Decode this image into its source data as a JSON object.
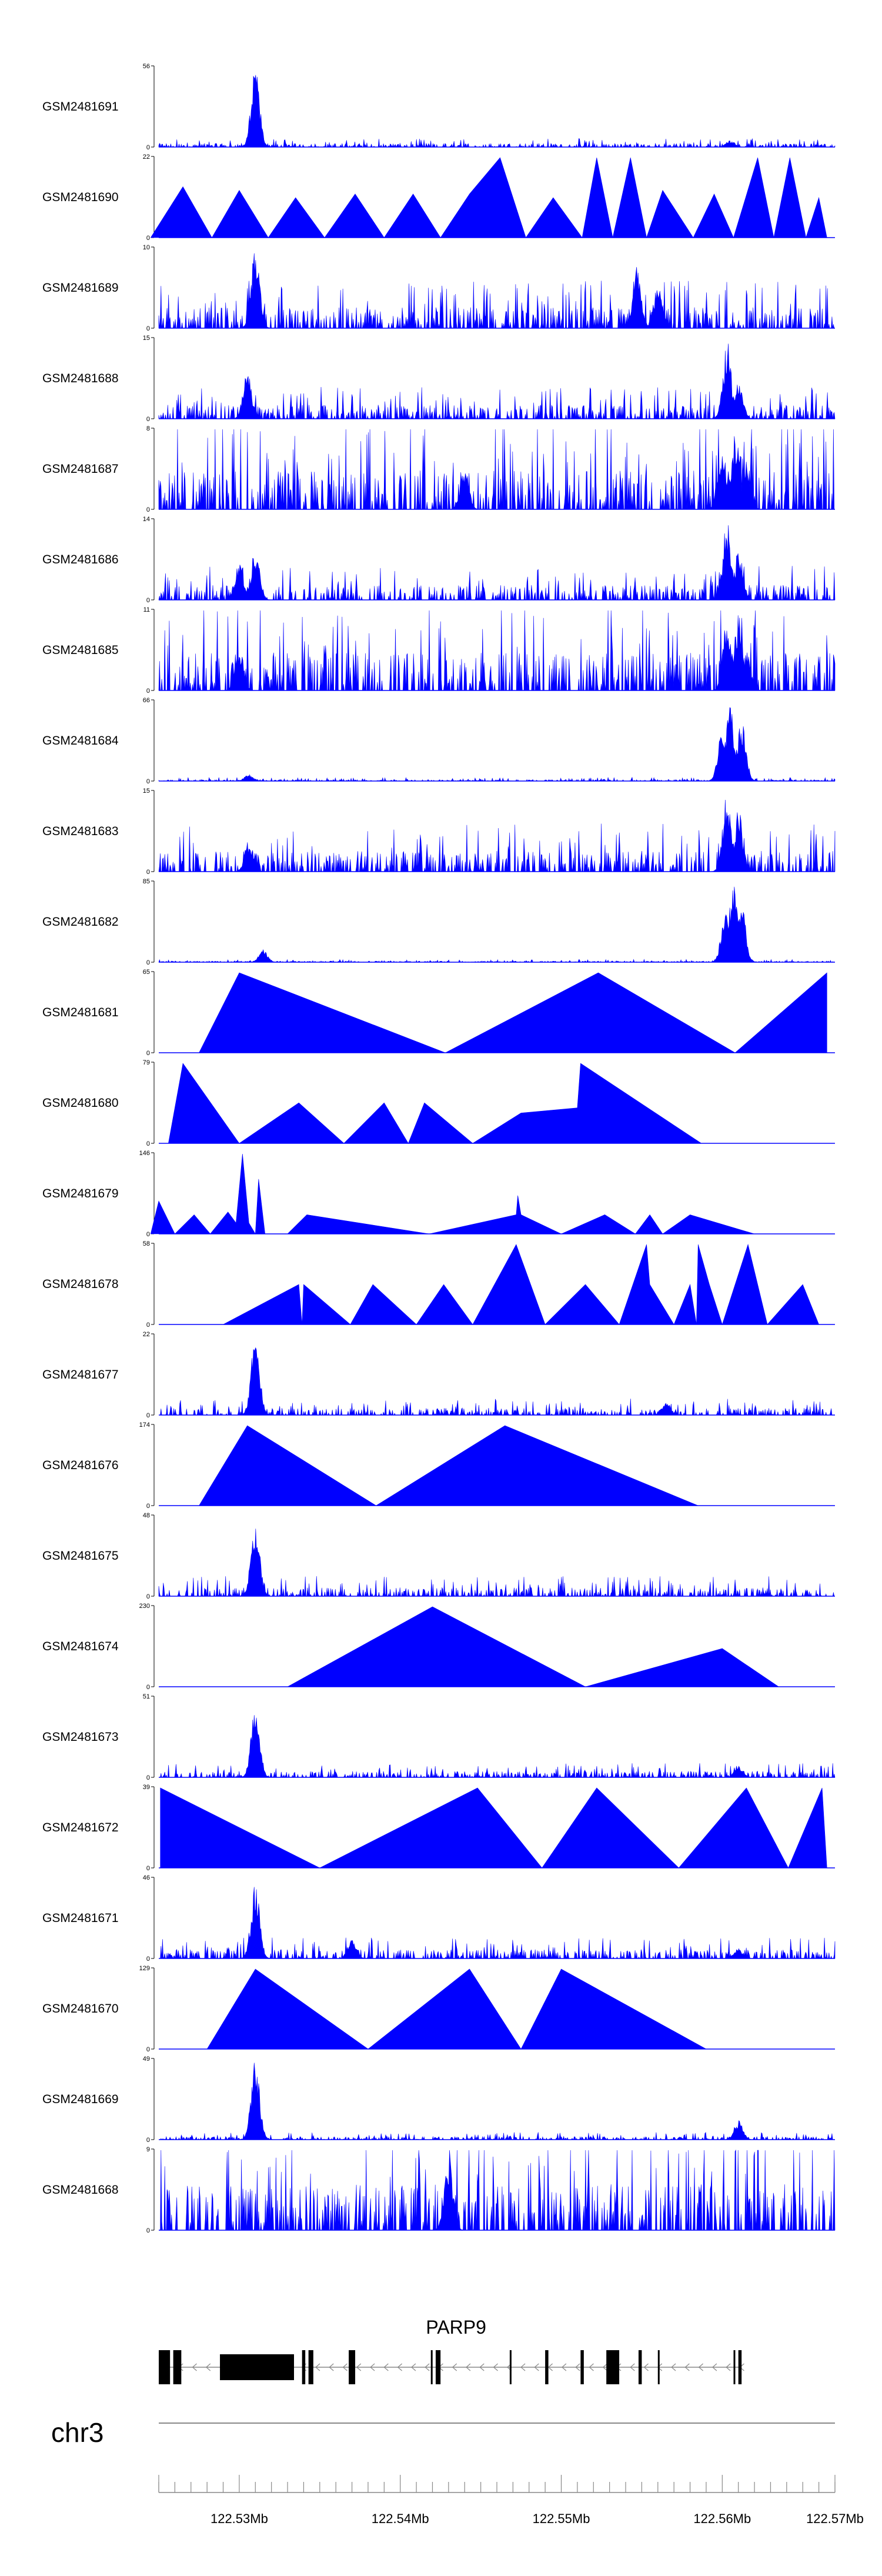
{
  "chart_data": {
    "type": "area",
    "title": "",
    "chromosome": "chr3",
    "x_range": [
      122.525,
      122.567
    ],
    "x_unit": "Mb",
    "x_ticks": [
      122.53,
      122.54,
      122.55,
      122.56,
      122.57
    ],
    "x_tick_labels": [
      "122.53Mb",
      "122.54Mb",
      "122.55Mb",
      "122.56Mb",
      "122.57Mb"
    ],
    "color": "#0000ff",
    "tracks": [
      {
        "name": "GSM2481691",
        "ymax": 56,
        "shape": "spiky",
        "peaks": [
          [
            122.531,
            56
          ],
          [
            122.5605,
            5
          ]
        ],
        "base": 2
      },
      {
        "name": "GSM2481690",
        "ymax": 22,
        "shape": "sparse",
        "points": [
          [
            122.5245,
            0
          ],
          [
            122.5265,
            14
          ],
          [
            122.5283,
            0
          ],
          [
            122.53,
            13
          ],
          [
            122.5318,
            0
          ],
          [
            122.5335,
            11
          ],
          [
            122.5353,
            0
          ],
          [
            122.5372,
            12
          ],
          [
            122.539,
            0
          ],
          [
            122.5408,
            12
          ],
          [
            122.5425,
            0
          ],
          [
            122.5443,
            12
          ],
          [
            122.5462,
            22
          ],
          [
            122.5478,
            0
          ],
          [
            122.5495,
            11
          ],
          [
            122.5513,
            0
          ],
          [
            122.5522,
            22
          ],
          [
            122.5532,
            0
          ],
          [
            122.5543,
            22
          ],
          [
            122.5553,
            0
          ],
          [
            122.5563,
            13
          ],
          [
            122.5582,
            0
          ],
          [
            122.5595,
            12
          ],
          [
            122.5607,
            0
          ],
          [
            122.5622,
            22
          ],
          [
            122.5632,
            0
          ],
          [
            122.5642,
            22
          ],
          [
            122.5652,
            0
          ],
          [
            122.566,
            11
          ],
          [
            122.5665,
            0
          ]
        ]
      },
      {
        "name": "GSM2481689",
        "ymax": 10,
        "shape": "spiky",
        "peaks": [
          [
            122.531,
            10
          ],
          [
            122.5547,
            8
          ],
          [
            122.556,
            6
          ]
        ],
        "base": 2
      },
      {
        "name": "GSM2481688",
        "ymax": 15,
        "shape": "spiky",
        "peaks": [
          [
            122.5305,
            9
          ],
          [
            122.5603,
            15
          ],
          [
            122.561,
            8
          ]
        ],
        "base": 2
      },
      {
        "name": "GSM2481687",
        "ymax": 8,
        "shape": "spiky",
        "peaks": [
          [
            122.56,
            6
          ],
          [
            122.5608,
            8
          ],
          [
            122.5615,
            5
          ],
          [
            122.544,
            4
          ]
        ],
        "base": 3
      },
      {
        "name": "GSM2481686",
        "ymax": 14,
        "shape": "spiky",
        "peaks": [
          [
            122.53,
            7
          ],
          [
            122.531,
            9
          ],
          [
            122.5603,
            14
          ],
          [
            122.561,
            9
          ]
        ],
        "base": 2
      },
      {
        "name": "GSM2481685",
        "ymax": 11,
        "shape": "spiky",
        "peaks": [
          [
            122.53,
            6
          ],
          [
            122.5603,
            10
          ],
          [
            122.561,
            11
          ],
          [
            122.5615,
            6
          ]
        ],
        "base": 4
      },
      {
        "name": "GSM2481684",
        "ymax": 66,
        "shape": "spiky",
        "peaks": [
          [
            122.56,
            48
          ],
          [
            122.5605,
            66
          ],
          [
            122.5612,
            54
          ],
          [
            122.5306,
            6
          ]
        ],
        "base": 1
      },
      {
        "name": "GSM2481683",
        "ymax": 15,
        "shape": "spiky",
        "peaks": [
          [
            122.5603,
            15
          ],
          [
            122.561,
            12
          ],
          [
            122.5306,
            6
          ]
        ],
        "base": 3
      },
      {
        "name": "GSM2481682",
        "ymax": 85,
        "shape": "spiky",
        "peaks": [
          [
            122.5602,
            55
          ],
          [
            122.5607,
            85
          ],
          [
            122.5612,
            60
          ],
          [
            122.5315,
            14
          ]
        ],
        "base": 1
      },
      {
        "name": "GSM2481681",
        "ymax": 65,
        "shape": "sparse",
        "points": [
          [
            122.5275,
            0
          ],
          [
            122.53,
            65
          ],
          [
            122.5428,
            0
          ],
          [
            122.5523,
            65
          ],
          [
            122.5608,
            0
          ],
          [
            122.5665,
            65
          ],
          [
            122.5665,
            0
          ]
        ]
      },
      {
        "name": "GSM2481680",
        "ymax": 79,
        "shape": "sparse",
        "points": [
          [
            122.5256,
            0
          ],
          [
            122.5265,
            79
          ],
          [
            122.53,
            0
          ],
          [
            122.5337,
            40
          ],
          [
            122.5365,
            0
          ],
          [
            122.539,
            40
          ],
          [
            122.5405,
            0
          ],
          [
            122.5415,
            40
          ],
          [
            122.5445,
            0
          ],
          [
            122.5475,
            30
          ],
          [
            122.551,
            35
          ],
          [
            122.5512,
            79
          ],
          [
            122.5587,
            0
          ]
        ]
      },
      {
        "name": "GSM2481679",
        "ymax": 146,
        "shape": "sparse",
        "points": [
          [
            122.5245,
            0
          ],
          [
            122.525,
            60
          ],
          [
            122.526,
            0
          ],
          [
            122.5272,
            35
          ],
          [
            122.5282,
            0
          ],
          [
            122.5293,
            40
          ],
          [
            122.5298,
            20
          ],
          [
            122.5302,
            146
          ],
          [
            122.5306,
            20
          ],
          [
            122.531,
            0
          ],
          [
            122.5312,
            100
          ],
          [
            122.5316,
            0
          ],
          [
            122.533,
            0
          ],
          [
            122.5342,
            35
          ],
          [
            122.5418,
            0
          ],
          [
            122.5472,
            35
          ],
          [
            122.5473,
            70
          ],
          [
            122.5475,
            35
          ],
          [
            122.55,
            0
          ],
          [
            122.5527,
            35
          ],
          [
            122.5546,
            0
          ],
          [
            122.5555,
            35
          ],
          [
            122.5563,
            0
          ],
          [
            122.558,
            35
          ],
          [
            122.562,
            0
          ]
        ]
      },
      {
        "name": "GSM2481678",
        "ymax": 58,
        "shape": "sparse",
        "points": [
          [
            122.529,
            0
          ],
          [
            122.5337,
            29
          ],
          [
            122.5339,
            0
          ],
          [
            122.534,
            29
          ],
          [
            122.5369,
            0
          ],
          [
            122.5383,
            29
          ],
          [
            122.541,
            0
          ],
          [
            122.5427,
            29
          ],
          [
            122.5445,
            0
          ],
          [
            122.5472,
            58
          ],
          [
            122.549,
            0
          ],
          [
            122.5515,
            29
          ],
          [
            122.5536,
            0
          ],
          [
            122.5553,
            58
          ],
          [
            122.5555,
            29
          ],
          [
            122.557,
            0
          ],
          [
            122.558,
            29
          ],
          [
            122.5584,
            0
          ],
          [
            122.5585,
            58
          ],
          [
            122.5592,
            29
          ],
          [
            122.56,
            0
          ],
          [
            122.5616,
            58
          ],
          [
            122.5628,
            0
          ],
          [
            122.565,
            29
          ],
          [
            122.566,
            0
          ]
        ]
      },
      {
        "name": "GSM2481677",
        "ymax": 22,
        "shape": "spiky",
        "peaks": [
          [
            122.531,
            22
          ],
          [
            122.5565,
            4
          ]
        ],
        "base": 1.5
      },
      {
        "name": "GSM2481676",
        "ymax": 174,
        "shape": "sparse",
        "points": [
          [
            122.5275,
            0
          ],
          [
            122.5305,
            174
          ],
          [
            122.5385,
            0
          ],
          [
            122.5465,
            174
          ],
          [
            122.5585,
            0
          ]
        ]
      },
      {
        "name": "GSM2481675",
        "ymax": 48,
        "shape": "spiky",
        "peaks": [
          [
            122.531,
            48
          ]
        ],
        "base": 4
      },
      {
        "name": "GSM2481674",
        "ymax": 230,
        "shape": "sparse",
        "points": [
          [
            122.533,
            0
          ],
          [
            122.542,
            230
          ],
          [
            122.5515,
            0
          ],
          [
            122.56,
            110
          ],
          [
            122.5635,
            0
          ]
        ]
      },
      {
        "name": "GSM2481673",
        "ymax": 51,
        "shape": "spiky",
        "peaks": [
          [
            122.531,
            51
          ],
          [
            122.561,
            8
          ]
        ],
        "base": 3
      },
      {
        "name": "GSM2481672",
        "ymax": 39,
        "shape": "sparse",
        "points": [
          [
            122.5251,
            0
          ],
          [
            122.5251,
            39
          ],
          [
            122.535,
            0
          ],
          [
            122.5448,
            39
          ],
          [
            122.5488,
            0
          ],
          [
            122.5522,
            39
          ],
          [
            122.5573,
            0
          ],
          [
            122.5615,
            39
          ],
          [
            122.5641,
            0
          ],
          [
            122.5662,
            39
          ],
          [
            122.5665,
            0
          ]
        ]
      },
      {
        "name": "GSM2481671",
        "ymax": 46,
        "shape": "spiky",
        "peaks": [
          [
            122.531,
            46
          ],
          [
            122.537,
            12
          ],
          [
            122.561,
            6
          ]
        ],
        "base": 4
      },
      {
        "name": "GSM2481670",
        "ymax": 129,
        "shape": "sparse",
        "points": [
          [
            122.528,
            0
          ],
          [
            122.531,
            129
          ],
          [
            122.538,
            0
          ],
          [
            122.5443,
            129
          ],
          [
            122.5475,
            0
          ],
          [
            122.55,
            129
          ],
          [
            122.559,
            0
          ]
        ]
      },
      {
        "name": "GSM2481669",
        "ymax": 49,
        "shape": "spiky",
        "peaks": [
          [
            122.531,
            49
          ],
          [
            122.561,
            12
          ]
        ],
        "base": 1.5
      },
      {
        "name": "GSM2481668",
        "ymax": 9,
        "shape": "spiky",
        "peaks": [
          [
            122.543,
            9
          ]
        ],
        "base": 4
      }
    ],
    "gene": {
      "name": "PARP9",
      "strand": "-",
      "start": 122.525,
      "end": 122.5612,
      "exons": [
        [
          122.525,
          122.5257
        ],
        [
          122.5259,
          122.5264
        ],
        [
          122.5288,
          122.5334
        ],
        [
          122.5339,
          122.5341
        ],
        [
          122.5343,
          122.5346
        ],
        [
          122.5368,
          122.5372
        ],
        [
          122.5419,
          122.542
        ],
        [
          122.5422,
          122.5425
        ],
        [
          122.5468,
          122.5469
        ],
        [
          122.549,
          122.5492
        ],
        [
          122.5512,
          122.5514
        ],
        [
          122.5528,
          122.5536
        ],
        [
          122.5548,
          122.555
        ],
        [
          122.556,
          122.5561
        ],
        [
          122.5607,
          122.5608
        ],
        [
          122.561,
          122.5612
        ]
      ]
    }
  }
}
